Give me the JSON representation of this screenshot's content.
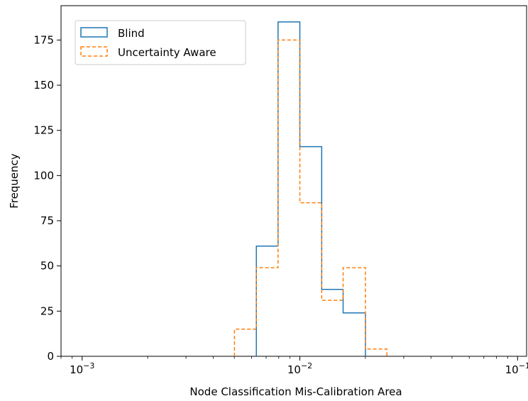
{
  "chart_data": {
    "type": "histogram",
    "xlabel": "Node Classification Mis-Calibration Area",
    "ylabel": "Frequency",
    "x_scale": "log",
    "xlim": [
      0.0008,
      0.11
    ],
    "ylim": [
      0,
      194
    ],
    "grid": false,
    "legend_placement": "top-left",
    "x_ticks": [
      {
        "value": 0.001,
        "base": "10",
        "exp": "−3"
      },
      {
        "value": 0.01,
        "base": "10",
        "exp": "−2"
      },
      {
        "value": 0.1,
        "base": "10",
        "exp": "−1"
      }
    ],
    "y_ticks": [
      0,
      25,
      50,
      75,
      100,
      125,
      150,
      175
    ],
    "series": [
      {
        "name": "Blind",
        "color": "#1f77b4",
        "linestyle": "solid",
        "bin_edges": [
          0.00631,
          0.00794,
          0.01,
          0.0126,
          0.0158,
          0.02
        ],
        "counts": [
          61,
          185,
          116,
          37,
          24
        ]
      },
      {
        "name": "Uncertainty Aware",
        "color": "#ff7f0e",
        "linestyle": "dashed",
        "bin_edges": [
          0.00501,
          0.00631,
          0.00794,
          0.01,
          0.0126,
          0.0158,
          0.02,
          0.0251
        ],
        "counts": [
          15,
          49,
          175,
          85,
          31,
          49,
          4
        ]
      }
    ]
  }
}
